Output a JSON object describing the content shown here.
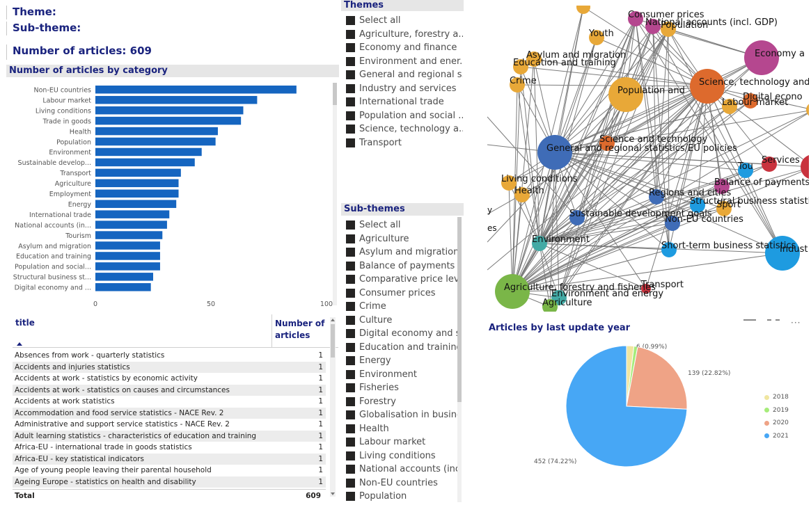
{
  "kpis": {
    "theme_label": "Theme:",
    "subtheme_label": "Sub-theme:",
    "articles_label": "Number of articles: 609"
  },
  "bar_chart_title": "Number of articles by category",
  "chart_data": {
    "type": "bar",
    "orientation": "horizontal",
    "categories": [
      "Non-EU countries",
      "Labour market",
      "Living conditions",
      "Trade in goods",
      "Health",
      "Population",
      "Environment",
      "Sustainable develop...",
      "Transport",
      "Agriculture",
      "Employment",
      "Energy",
      "International trade",
      "National accounts (in...",
      "Tourism",
      "Asylum and migration",
      "Education and training",
      "Population and social...",
      "Structural business st...",
      "Digital economy and ..."
    ],
    "values": [
      87,
      70,
      64,
      63,
      53,
      52,
      46,
      43,
      37,
      36,
      36,
      35,
      32,
      31,
      29,
      28,
      28,
      28,
      25,
      24
    ],
    "xlim": [
      0,
      100
    ],
    "xticks": [
      "0",
      "50",
      "100"
    ],
    "color": "#1565c0"
  },
  "table": {
    "col_title": "title",
    "col_count": "Number of articles",
    "rows": [
      {
        "title": "Absences from work - quarterly statistics",
        "count": "1"
      },
      {
        "title": "Accidents and injuries statistics",
        "count": "1"
      },
      {
        "title": "Accidents at work - statistics by economic activity",
        "count": "1"
      },
      {
        "title": "Accidents at work - statistics on causes and circumstances",
        "count": "1"
      },
      {
        "title": "Accidents at work statistics",
        "count": "1"
      },
      {
        "title": "Accommodation and food service statistics - NACE Rev. 2",
        "count": "1"
      },
      {
        "title": "Administrative and support service statistics - NACE Rev. 2",
        "count": "1"
      },
      {
        "title": "Adult learning statistics - characteristics of education and training",
        "count": "1"
      },
      {
        "title": "Africa-EU - international trade in goods statistics",
        "count": "1"
      },
      {
        "title": "Africa-EU - key statistical indicators",
        "count": "1"
      },
      {
        "title": "Age of young people leaving their parental household",
        "count": "1"
      },
      {
        "title": "Ageing Europe - statistics on health and disability",
        "count": "1"
      }
    ],
    "total_label": "Total",
    "total_value": "609"
  },
  "themes": {
    "title": "Themes",
    "items": [
      "Select all",
      "Agriculture, forestry a...",
      "Economy and finance",
      "Environment and ener...",
      "General and regional s...",
      "Industry and services",
      "International trade",
      "Population and social ...",
      "Science, technology a...",
      "Transport"
    ]
  },
  "subthemes": {
    "title": "Sub-themes",
    "items": [
      "Select all",
      "Agriculture",
      "Asylum and migration",
      "Balance of payments",
      "Comparative price lev...",
      "Consumer prices",
      "Crime",
      "Culture",
      "Digital economy and s...",
      "Education and training",
      "Energy",
      "Environment",
      "Fisheries",
      "Forestry",
      "Globalisation in busine...",
      "Health",
      "Labour market",
      "Living conditions",
      "National accounts (incl...",
      "Non-EU countries",
      "Population"
    ]
  },
  "network": {
    "nodes": [
      {
        "label": "Consumer prices",
        "color": "#b5478f"
      },
      {
        "label": "National accounts (incl. GDP)",
        "color": "#b5478f"
      },
      {
        "label": "Population",
        "color": "#e8a838"
      },
      {
        "label": "Youth",
        "color": "#e8a838"
      },
      {
        "label": "Economy a",
        "color": "#b5478f"
      },
      {
        "label": "Asylum and migration",
        "color": "#e8a838"
      },
      {
        "label": "Education and training",
        "color": "#e8a838"
      },
      {
        "label": "Crime",
        "color": "#e8a838"
      },
      {
        "label": "Population and",
        "color": "#e8a838"
      },
      {
        "label": "Science, technology and",
        "color": "#dd6a2d"
      },
      {
        "label": "Labour market",
        "color": "#e8a838"
      },
      {
        "label": "Digital econo",
        "color": "#dd6a2d"
      },
      {
        "label": "General and regional statistics/EU policies",
        "color": "#3f6cb7"
      },
      {
        "label": "Science and technology",
        "color": "#dd6a2d"
      },
      {
        "label": "Tou",
        "color": "#1e9be0"
      },
      {
        "label": "Services",
        "color": "#c9333e"
      },
      {
        "label": "Living conditions",
        "color": "#e8a838"
      },
      {
        "label": "Health",
        "color": "#e8a838"
      },
      {
        "label": "Balance of payments",
        "color": "#b5478f"
      },
      {
        "label": "Regions and cities",
        "color": "#3f6cb7"
      },
      {
        "label": "Structural business statisti",
        "color": "#1e9be0"
      },
      {
        "label": "Sport",
        "color": "#e8a838"
      },
      {
        "label": "Sustainable development goals",
        "color": "#3f6cb7"
      },
      {
        "label": "Non-EU countries",
        "color": "#3f6cb7"
      },
      {
        "label": "Environment",
        "color": "#43aaa5"
      },
      {
        "label": "Short-term business statistics",
        "color": "#1e9be0"
      },
      {
        "label": "Indust",
        "color": "#1e9be0"
      },
      {
        "label": "Agriculture, forestry and fisheries",
        "color": "#7ab648"
      },
      {
        "label": "Transport",
        "color": "#c9333e"
      },
      {
        "label": "Environment and energy",
        "color": "#43aaa5"
      },
      {
        "label": "Agriculture",
        "color": "#7ab648"
      }
    ],
    "edge_labels": [
      "y",
      "es"
    ]
  },
  "pie": {
    "title": "Articles by last update year",
    "slices": [
      {
        "year": "2018",
        "value": 12,
        "label": "",
        "color": "#f0e6a0"
      },
      {
        "year": "2019",
        "value": 6,
        "label": "6 (0.99%)",
        "color": "#a6ec7a"
      },
      {
        "year": "2020",
        "value": 139,
        "label": "139 (22.82%)",
        "color": "#efa386"
      },
      {
        "year": "2021",
        "value": 452,
        "label": "452 (74.22%)",
        "color": "#47a7f5"
      }
    ],
    "legend": [
      "2018",
      "2019",
      "2020",
      "2021"
    ]
  },
  "icons": {
    "focus": "focus-mode-icon",
    "filter": "filter-icon",
    "more": "more-options-icon"
  }
}
